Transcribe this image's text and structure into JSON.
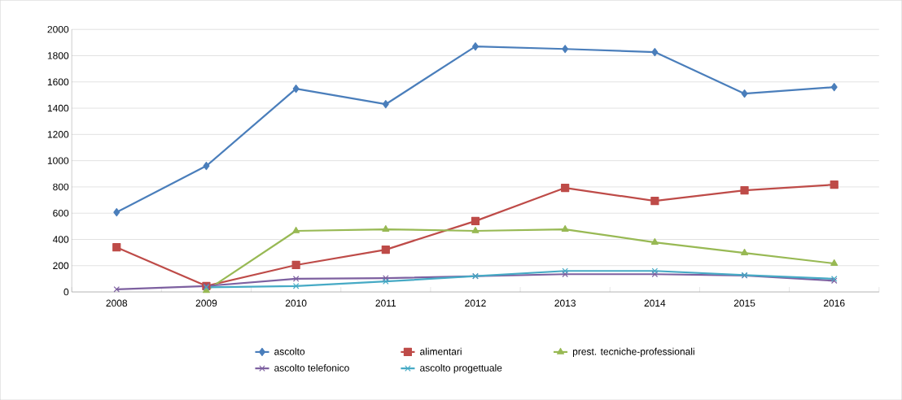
{
  "chart_data": {
    "type": "line",
    "categories": [
      "2008",
      "2009",
      "2010",
      "2011",
      "2012",
      "2013",
      "2014",
      "2015",
      "2016"
    ],
    "series": [
      {
        "name": "ascolto",
        "color": "#4a7ebb",
        "marker": "diamond",
        "values": [
          607,
          960,
          1548,
          1430,
          1870,
          1851,
          1827,
          1511,
          1560
        ]
      },
      {
        "name": "alimentari",
        "color": "#be4b48",
        "marker": "square",
        "values": [
          340,
          45,
          205,
          322,
          540,
          793,
          693,
          774,
          817
        ]
      },
      {
        "name": "prest. tecniche-professionali",
        "color": "#98b954",
        "marker": "triangle",
        "values": [
          null,
          10,
          465,
          477,
          465,
          477,
          378,
          297,
          217
        ]
      },
      {
        "name": "ascolto telefonico",
        "color": "#7d60a0",
        "marker": "cross",
        "values": [
          20,
          45,
          100,
          105,
          120,
          135,
          135,
          125,
          85
        ]
      },
      {
        "name": "ascolto progettuale",
        "color": "#46aac5",
        "marker": "cross",
        "values": [
          null,
          35,
          45,
          80,
          120,
          160,
          160,
          128,
          100
        ]
      }
    ],
    "ylim": [
      0,
      2000
    ],
    "yticks": [
      0,
      200,
      400,
      600,
      800,
      1000,
      1200,
      1400,
      1600,
      1800,
      2000
    ],
    "grid": "y",
    "legend": "bottom",
    "line_style": "solid"
  }
}
